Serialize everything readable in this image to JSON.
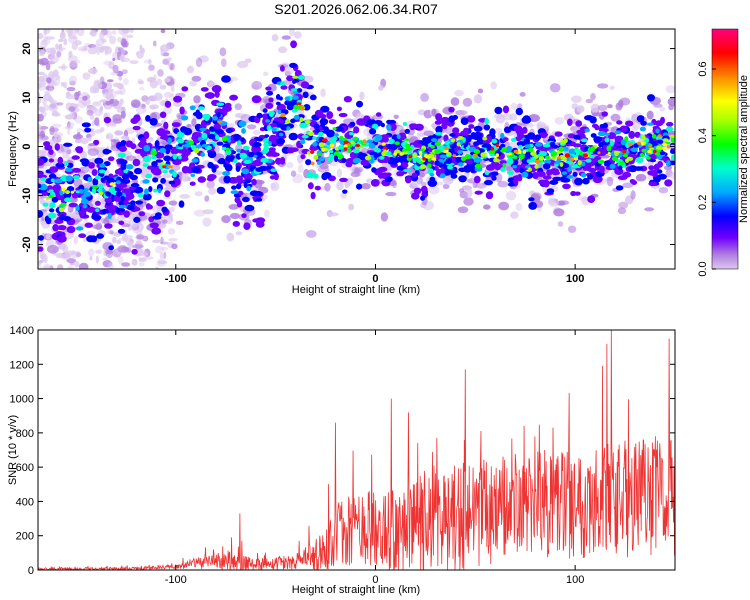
{
  "figure": {
    "title": "S201.2026.062.06.34.R07"
  },
  "chart_data": [
    {
      "type": "heatmap",
      "name": "spectrogram",
      "title": "S201.2026.062.06.34.R07",
      "xlabel": "Height of straight line (km)",
      "ylabel": "Frequency (Hz)",
      "xlim": [
        -169,
        150
      ],
      "ylim": [
        -25,
        24
      ],
      "xticks": [
        -100,
        0,
        100
      ],
      "yticks": [
        -20,
        -10,
        0,
        10,
        20
      ],
      "colorbar": {
        "label": "Normalized spectral amplitude",
        "range": [
          0,
          0.72
        ],
        "ticks": [
          "0.0",
          "0.2",
          "0.4",
          "0.6"
        ],
        "tick_values": [
          0,
          0.2,
          0.4,
          0.6
        ],
        "colormap": [
          "#ddc8f0",
          "#b07de0",
          "#7000ff",
          "#0000ff",
          "#00aaff",
          "#00ffcc",
          "#00ff00",
          "#aaff00",
          "#ffff00",
          "#ff8800",
          "#ff0000",
          "#ff0080"
        ]
      },
      "ridge": {
        "x": [
          -169,
          -150,
          -130,
          -110,
          -95,
          -85,
          -78,
          -70,
          -60,
          -55,
          -50,
          -45,
          -40,
          -35,
          -32,
          -28,
          -20,
          0,
          20,
          40,
          60,
          80,
          100,
          120,
          140,
          150
        ],
        "y": [
          -9,
          -9,
          -8,
          -5,
          0,
          3,
          4,
          -3,
          -4,
          0,
          4,
          8,
          10,
          6,
          0,
          0,
          0,
          0,
          -2,
          -1,
          -1,
          -2,
          -2,
          -1,
          0,
          0
        ]
      },
      "noise_region": {
        "x_range": [
          -169,
          -100
        ],
        "y_range": [
          -25,
          24
        ]
      }
    },
    {
      "type": "line",
      "name": "snr",
      "xlabel": "Height of straight line (km)",
      "ylabel": "SNR (10 * v/v)",
      "xlim": [
        -169,
        150
      ],
      "ylim": [
        0,
        1400
      ],
      "xticks": [
        -100,
        0,
        100
      ],
      "yticks": [
        0,
        200,
        400,
        600,
        800,
        1000,
        1200,
        1400
      ],
      "color": "#ee3333",
      "envelope": {
        "x": [
          -169,
          -120,
          -100,
          -90,
          -80,
          -70,
          -60,
          -50,
          -40,
          -30,
          -25,
          -20,
          0,
          20,
          40,
          60,
          80,
          100,
          120,
          140,
          150
        ],
        "base": [
          5,
          8,
          20,
          40,
          50,
          40,
          30,
          40,
          50,
          60,
          120,
          200,
          250,
          250,
          300,
          350,
          380,
          400,
          400,
          420,
          420
        ],
        "amp": [
          20,
          20,
          30,
          80,
          120,
          150,
          80,
          90,
          100,
          250,
          350,
          450,
          550,
          650,
          700,
          700,
          700,
          750,
          800,
          750,
          750
        ]
      },
      "peaks": [
        {
          "x": -68,
          "y": 330
        },
        {
          "x": -20,
          "y": 860
        },
        {
          "x": 8,
          "y": 1000
        },
        {
          "x": 45,
          "y": 1170
        },
        {
          "x": 118,
          "y": 1400
        },
        {
          "x": 147,
          "y": 1350
        }
      ]
    }
  ]
}
